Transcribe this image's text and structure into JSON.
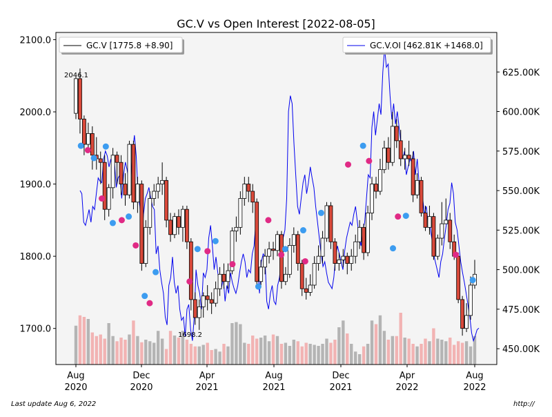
{
  "chart_data": {
    "type": "candlestick",
    "title": "GC.V vs Open Interest [2022-08-05]",
    "legend": {
      "price": "GC.V [1775.8 +8.90]",
      "oi": "GC.V.OI [462.81K +1468.0]",
      "price_placement": "upper-left",
      "oi_placement": "upper-right"
    },
    "x_ticks": [
      {
        "month": "Aug",
        "year": "2020"
      },
      {
        "month": "Dec",
        "year": "2020"
      },
      {
        "month": "Apr",
        "year": "2021"
      },
      {
        "month": "Aug",
        "year": "2021"
      },
      {
        "month": "Dec",
        "year": "2021"
      },
      {
        "month": "Apr",
        "year": "2022"
      },
      {
        "month": "Aug",
        "year": "2022"
      }
    ],
    "y_left": {
      "ticks": [
        "1700.0",
        "1800.0",
        "1900.0",
        "2000.0",
        "2100.0"
      ],
      "values": [
        1700,
        1800,
        1900,
        2000,
        2100
      ],
      "range": [
        1650,
        2110
      ]
    },
    "y_right": {
      "ticks": [
        "450.00K",
        "475.00K",
        "500.00K",
        "525.00K",
        "550.00K",
        "575.00K",
        "600.00K",
        "625.00K"
      ],
      "values": [
        450,
        475,
        500,
        525,
        550,
        575,
        600,
        625
      ],
      "range": [
        440,
        650
      ]
    },
    "annotations": {
      "high": "2046.1",
      "low": "1698.2"
    },
    "candles": [
      [
        1998,
        2046,
        2050,
        1990
      ],
      [
        2046,
        1990,
        2060,
        1970
      ],
      [
        1990,
        1955,
        1995,
        1940
      ],
      [
        1955,
        1970,
        1985,
        1945
      ],
      [
        1970,
        1940,
        1980,
        1920
      ],
      [
        1940,
        1935,
        1965,
        1920
      ],
      [
        1935,
        1930,
        1945,
        1900
      ],
      [
        1930,
        1865,
        1940,
        1850
      ],
      [
        1865,
        1895,
        1900,
        1855
      ],
      [
        1895,
        1940,
        1950,
        1880
      ],
      [
        1940,
        1930,
        1945,
        1900
      ],
      [
        1930,
        1900,
        1940,
        1885
      ],
      [
        1900,
        1885,
        1915,
        1870
      ],
      [
        1885,
        1955,
        1960,
        1880
      ],
      [
        1955,
        1875,
        1960,
        1865
      ],
      [
        1875,
        1900,
        1910,
        1860
      ],
      [
        1900,
        1790,
        1905,
        1780
      ],
      [
        1790,
        1840,
        1850,
        1785
      ],
      [
        1840,
        1880,
        1890,
        1830
      ],
      [
        1880,
        1890,
        1900,
        1870
      ],
      [
        1890,
        1900,
        1910,
        1880
      ],
      [
        1900,
        1905,
        1930,
        1885
      ],
      [
        1905,
        1850,
        1910,
        1840
      ],
      [
        1850,
        1830,
        1860,
        1820
      ],
      [
        1830,
        1855,
        1860,
        1825
      ],
      [
        1855,
        1840,
        1865,
        1830
      ],
      [
        1840,
        1865,
        1870,
        1820
      ],
      [
        1865,
        1820,
        1870,
        1810
      ],
      [
        1820,
        1740,
        1825,
        1725
      ],
      [
        1740,
        1715,
        1750,
        1705
      ],
      [
        1715,
        1730,
        1740,
        1698
      ],
      [
        1730,
        1745,
        1750,
        1715
      ],
      [
        1745,
        1740,
        1760,
        1725
      ],
      [
        1740,
        1735,
        1750,
        1720
      ],
      [
        1735,
        1755,
        1765,
        1730
      ],
      [
        1755,
        1775,
        1785,
        1745
      ],
      [
        1775,
        1765,
        1790,
        1755
      ],
      [
        1765,
        1780,
        1790,
        1755
      ],
      [
        1780,
        1835,
        1840,
        1775
      ],
      [
        1835,
        1840,
        1855,
        1820
      ],
      [
        1840,
        1880,
        1890,
        1830
      ],
      [
        1880,
        1900,
        1910,
        1870
      ],
      [
        1900,
        1890,
        1910,
        1875
      ],
      [
        1890,
        1875,
        1900,
        1860
      ],
      [
        1875,
        1765,
        1880,
        1755
      ],
      [
        1765,
        1785,
        1795,
        1760
      ],
      [
        1785,
        1800,
        1810,
        1775
      ],
      [
        1800,
        1810,
        1820,
        1790
      ],
      [
        1810,
        1808,
        1820,
        1795
      ],
      [
        1808,
        1830,
        1835,
        1800
      ],
      [
        1830,
        1765,
        1835,
        1755
      ],
      [
        1765,
        1775,
        1785,
        1760
      ],
      [
        1775,
        1815,
        1825,
        1770
      ],
      [
        1815,
        1830,
        1840,
        1805
      ],
      [
        1830,
        1790,
        1835,
        1780
      ],
      [
        1790,
        1755,
        1795,
        1745
      ],
      [
        1755,
        1750,
        1770,
        1740
      ],
      [
        1750,
        1760,
        1775,
        1745
      ],
      [
        1760,
        1790,
        1800,
        1755
      ],
      [
        1790,
        1800,
        1815,
        1780
      ],
      [
        1800,
        1825,
        1835,
        1790
      ],
      [
        1825,
        1870,
        1875,
        1820
      ],
      [
        1870,
        1820,
        1875,
        1810
      ],
      [
        1820,
        1790,
        1825,
        1780
      ],
      [
        1790,
        1795,
        1805,
        1780
      ],
      [
        1795,
        1800,
        1810,
        1785
      ],
      [
        1800,
        1790,
        1805,
        1775
      ],
      [
        1790,
        1800,
        1810,
        1780
      ],
      [
        1800,
        1820,
        1830,
        1790
      ],
      [
        1820,
        1840,
        1850,
        1810
      ],
      [
        1840,
        1805,
        1845,
        1795
      ],
      [
        1805,
        1860,
        1870,
        1800
      ],
      [
        1860,
        1900,
        1910,
        1850
      ],
      [
        1900,
        1890,
        1910,
        1880
      ],
      [
        1890,
        1920,
        1935,
        1885
      ],
      [
        1920,
        1950,
        1960,
        1915
      ],
      [
        1950,
        1930,
        1965,
        1920
      ],
      [
        1930,
        1980,
        2000,
        1925
      ],
      [
        1980,
        1960,
        1990,
        1950
      ],
      [
        1960,
        1935,
        1975,
        1925
      ],
      [
        1935,
        1940,
        1950,
        1920
      ],
      [
        1940,
        1935,
        1960,
        1925
      ],
      [
        1935,
        1885,
        1945,
        1875
      ],
      [
        1885,
        1905,
        1915,
        1880
      ],
      [
        1905,
        1860,
        1910,
        1855
      ],
      [
        1860,
        1840,
        1870,
        1835
      ],
      [
        1840,
        1855,
        1870,
        1830
      ],
      [
        1855,
        1800,
        1860,
        1795
      ],
      [
        1800,
        1825,
        1830,
        1795
      ],
      [
        1825,
        1845,
        1875,
        1815
      ],
      [
        1845,
        1850,
        1880,
        1845
      ],
      [
        1850,
        1820,
        1860,
        1810
      ],
      [
        1820,
        1800,
        1830,
        1795
      ],
      [
        1800,
        1740,
        1805,
        1735
      ],
      [
        1740,
        1700,
        1745,
        1690
      ],
      [
        1700,
        1718,
        1735,
        1695
      ],
      [
        1718,
        1760,
        1772,
        1712
      ],
      [
        1760,
        1775,
        1795,
        1755
      ]
    ],
    "volume_factor": [
      0.75,
      0.95,
      0.92,
      0.88,
      0.62,
      0.55,
      0.58,
      0.5,
      0.8,
      0.55,
      0.45,
      0.52,
      0.48,
      0.58,
      0.85,
      0.55,
      0.43,
      0.48,
      0.45,
      0.42,
      0.65,
      0.5,
      0.3,
      0.65,
      0.56,
      0.52,
      0.65,
      0.48,
      0.4,
      0.35,
      0.35,
      0.38,
      0.42,
      0.28,
      0.3,
      0.25,
      0.4,
      0.35,
      0.8,
      0.82,
      0.78,
      0.42,
      0.4,
      0.56,
      0.5,
      0.52,
      0.56,
      0.45,
      0.58,
      0.55,
      0.4,
      0.42,
      0.36,
      0.48,
      0.45,
      0.35,
      0.42,
      0.4,
      0.38,
      0.36,
      0.4,
      0.5,
      0.42,
      0.48,
      0.72,
      0.85,
      0.6,
      0.4,
      0.25,
      0.2,
      0.35,
      0.4,
      0.85,
      0.78,
      0.95,
      0.65,
      0.48,
      0.55,
      0.55,
      1.0,
      0.52,
      0.5,
      0.4,
      0.35,
      0.4,
      0.5,
      0.45,
      0.7,
      0.5,
      0.48,
      0.45,
      0.52,
      0.38,
      0.45,
      0.42,
      0.45,
      0.35,
      0.55,
      0.5,
      0.45
    ],
    "oi": [
      550,
      548,
      530,
      528,
      533,
      538,
      530,
      540,
      538,
      548,
      558,
      556,
      555,
      570,
      575,
      572,
      565,
      570,
      562,
      568,
      552,
      558,
      560,
      545,
      560,
      568,
      563,
      555,
      560,
      575,
      585,
      572,
      548,
      540,
      520,
      535,
      545,
      548,
      552,
      545,
      540,
      538,
      510,
      515,
      500,
      492,
      485,
      470,
      465,
      490,
      495,
      508,
      492,
      485,
      490,
      475,
      468,
      470,
      458,
      475,
      478,
      462,
      455,
      470,
      500,
      490,
      485,
      475,
      498,
      495,
      500,
      520,
      528,
      515,
      500,
      508,
      498,
      490,
      488,
      495,
      480,
      490,
      485,
      498,
      492,
      488,
      485,
      490,
      498,
      505,
      510,
      505,
      495,
      500,
      498,
      510,
      515,
      530,
      500,
      485,
      505,
      510,
      508,
      480,
      475,
      485,
      490,
      480,
      478,
      490,
      495,
      505,
      520,
      525,
      545,
      600,
      610,
      605,
      580,
      560,
      540,
      535,
      545,
      555,
      560,
      548,
      555,
      565,
      558,
      552,
      540,
      530,
      520,
      510,
      502,
      505,
      498,
      492,
      490,
      488,
      495,
      508,
      515,
      510,
      505,
      500,
      512,
      520,
      525,
      530,
      528,
      535,
      540,
      530,
      520,
      515,
      525,
      530,
      545,
      560,
      558,
      590,
      600,
      585,
      595,
      605,
      598,
      625,
      640,
      628,
      630,
      610,
      595,
      605,
      592,
      600,
      590,
      580,
      570,
      575,
      560,
      565,
      570,
      568,
      575,
      560,
      570,
      555,
      552,
      545,
      535,
      540,
      530,
      528,
      520,
      510,
      505,
      500,
      495,
      505,
      510,
      520,
      528,
      538,
      542,
      555,
      548,
      530,
      525,
      515,
      505,
      498,
      492,
      485,
      478,
      470,
      460,
      455,
      458,
      462,
      463
    ],
    "signals_blue": [
      [
        0.05,
        1953
      ],
      [
        0.18,
        1936
      ],
      [
        0.3,
        1952
      ],
      [
        0.37,
        1846
      ],
      [
        0.53,
        1855
      ],
      [
        0.69,
        1745
      ],
      [
        0.8,
        1778
      ],
      [
        1.22,
        1810
      ],
      [
        1.4,
        1821
      ],
      [
        1.83,
        1758
      ],
      [
        2.1,
        1810
      ],
      [
        2.28,
        1836
      ],
      [
        2.46,
        1860
      ],
      [
        2.88,
        1953
      ],
      [
        3.18,
        1811
      ],
      [
        3.31,
        1856
      ],
      [
        3.98,
        1767
      ]
    ],
    "signals_pink": [
      [
        0.12,
        1947
      ],
      [
        0.26,
        1880
      ],
      [
        0.46,
        1850
      ],
      [
        0.6,
        1815
      ],
      [
        0.74,
        1735
      ],
      [
        1.14,
        1765
      ],
      [
        1.32,
        1807
      ],
      [
        1.57,
        1789
      ],
      [
        1.93,
        1850
      ],
      [
        2.06,
        1802
      ],
      [
        2.3,
        1793
      ],
      [
        2.73,
        1927
      ],
      [
        2.94,
        1932
      ],
      [
        3.23,
        1855
      ],
      [
        3.81,
        1802
      ]
    ]
  }
}
